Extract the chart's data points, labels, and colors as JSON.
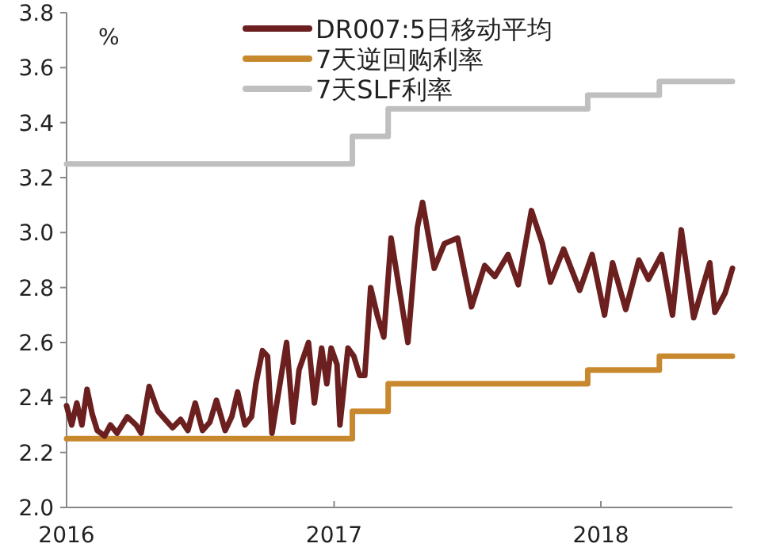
{
  "chart_data": {
    "type": "line",
    "ylabel": "%",
    "legend": "top",
    "xlim": [
      "2016-01-01",
      "2018-06-30"
    ],
    "ylim": [
      2.0,
      3.8
    ],
    "xticks": [
      "2016",
      "2017",
      "2018"
    ],
    "yticks": [
      {
        "value": 2.0,
        "label": "2.0"
      },
      {
        "value": 2.2,
        "label": "2.2"
      },
      {
        "value": 2.4,
        "label": "2.4"
      },
      {
        "value": 2.6,
        "label": "2.6"
      },
      {
        "value": 2.8,
        "label": "2.8"
      },
      {
        "value": 3.0,
        "label": "3.0"
      },
      {
        "value": 3.2,
        "label": "3.2"
      },
      {
        "value": 3.4,
        "label": "3.4"
      },
      {
        "value": 3.6,
        "label": "3.6"
      },
      {
        "value": 3.8,
        "label": "3.8"
      }
    ],
    "series": [
      {
        "name": "DR007:5日移动平均",
        "color": "#6b1f1f",
        "x": [
          "2016-01-01",
          "2016-01-08",
          "2016-01-15",
          "2016-01-22",
          "2016-01-29",
          "2016-02-05",
          "2016-02-12",
          "2016-02-22",
          "2016-03-01",
          "2016-03-10",
          "2016-03-24",
          "2016-04-05",
          "2016-04-12",
          "2016-04-23",
          "2016-05-05",
          "2016-05-15",
          "2016-05-25",
          "2016-06-05",
          "2016-06-15",
          "2016-06-25",
          "2016-07-05",
          "2016-07-15",
          "2016-07-24",
          "2016-08-05",
          "2016-08-14",
          "2016-08-22",
          "2016-09-01",
          "2016-09-10",
          "2016-09-16",
          "2016-09-25",
          "2016-10-02",
          "2016-10-08",
          "2016-10-28",
          "2016-11-06",
          "2016-11-14",
          "2016-11-27",
          "2016-12-05",
          "2016-12-15",
          "2016-12-22",
          "2016-12-28",
          "2017-01-05",
          "2017-01-09",
          "2017-01-20",
          "2017-01-28",
          "2017-02-05",
          "2017-02-12",
          "2017-02-20",
          "2017-03-01",
          "2017-03-10",
          "2017-03-20",
          "2017-04-12",
          "2017-04-25",
          "2017-05-02",
          "2017-05-18",
          "2017-06-01",
          "2017-06-19",
          "2017-07-08",
          "2017-07-26",
          "2017-08-09",
          "2017-08-27",
          "2017-09-10",
          "2017-09-28",
          "2017-10-13",
          "2017-10-24",
          "2017-11-11",
          "2017-12-03",
          "2017-12-20",
          "2018-01-06",
          "2018-01-17",
          "2018-02-04",
          "2018-02-22",
          "2018-03-07",
          "2018-03-25",
          "2018-04-09",
          "2018-04-21",
          "2018-05-08",
          "2018-05-30",
          "2018-06-06",
          "2018-06-20",
          "2018-06-30"
        ],
        "values": [
          2.37,
          2.3,
          2.38,
          2.3,
          2.43,
          2.34,
          2.28,
          2.26,
          2.3,
          2.27,
          2.33,
          2.3,
          2.27,
          2.44,
          2.35,
          2.32,
          2.29,
          2.32,
          2.28,
          2.38,
          2.28,
          2.31,
          2.39,
          2.28,
          2.33,
          2.42,
          2.3,
          2.33,
          2.45,
          2.57,
          2.55,
          2.27,
          2.6,
          2.31,
          2.5,
          2.6,
          2.38,
          2.58,
          2.45,
          2.58,
          2.52,
          2.3,
          2.58,
          2.55,
          2.48,
          2.48,
          2.8,
          2.7,
          2.62,
          2.98,
          2.6,
          3.02,
          3.11,
          2.87,
          2.96,
          2.98,
          2.73,
          2.88,
          2.84,
          2.92,
          2.81,
          3.08,
          2.96,
          2.82,
          2.94,
          2.79,
          2.92,
          2.7,
          2.89,
          2.72,
          2.9,
          2.83,
          2.92,
          2.7,
          3.01,
          2.69,
          2.89,
          2.71,
          2.78,
          2.87
        ]
      },
      {
        "name": "7天逆回购利率",
        "color": "#c8882e",
        "type": "step",
        "x": [
          "2016-01-01",
          "2017-01-26",
          "2017-03-16",
          "2017-12-14",
          "2018-03-22",
          "2018-06-30"
        ],
        "values": [
          2.25,
          2.35,
          2.45,
          2.5,
          2.55,
          2.55
        ]
      },
      {
        "name": "7天SLF利率",
        "color": "#bfbfbf",
        "type": "step",
        "x": [
          "2016-01-01",
          "2017-01-26",
          "2017-03-16",
          "2017-12-14",
          "2018-03-22",
          "2018-06-30"
        ],
        "values": [
          3.25,
          3.35,
          3.45,
          3.5,
          3.55,
          3.55
        ]
      }
    ]
  }
}
